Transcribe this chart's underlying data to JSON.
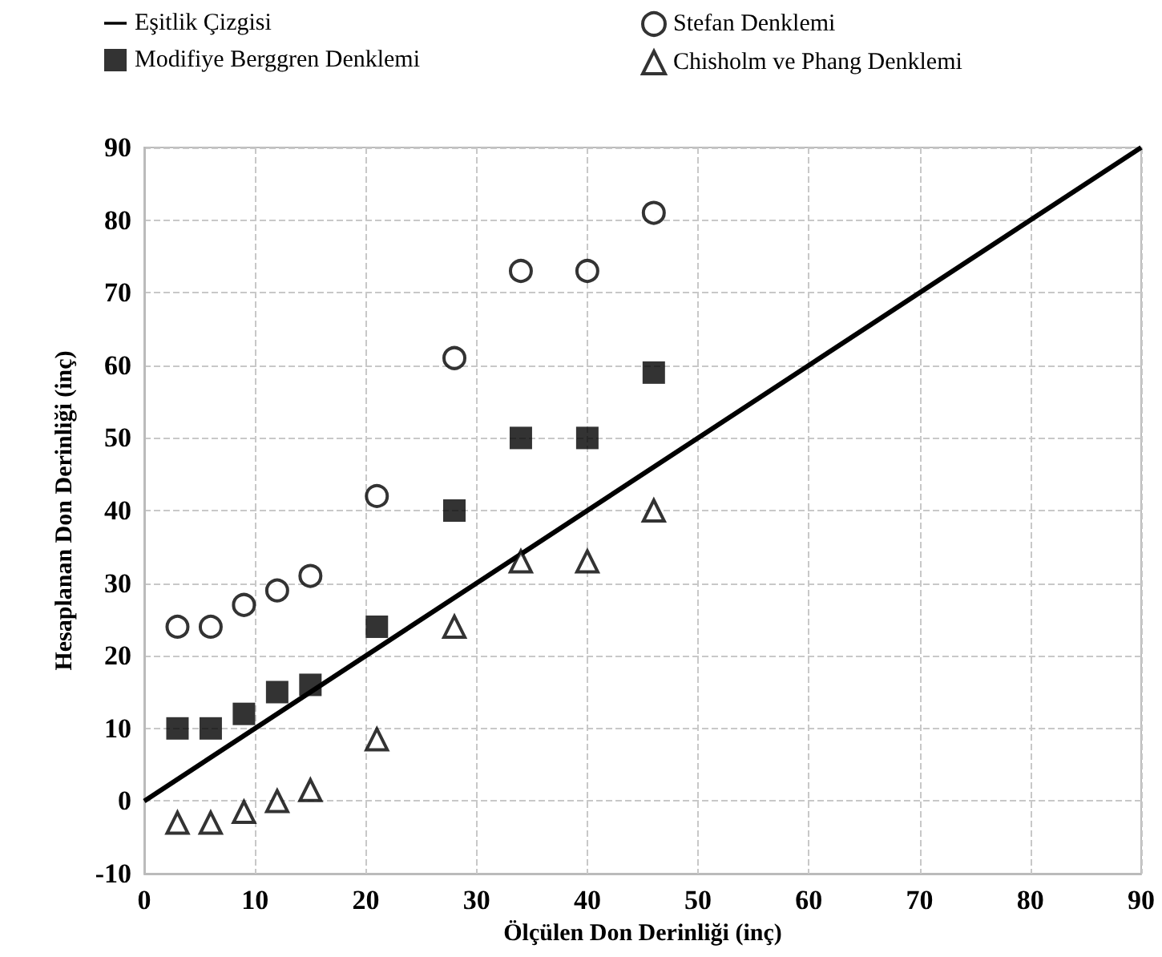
{
  "chart_data": {
    "type": "scatter",
    "xlabel": "Ölçülen Don Derinliği (inç)",
    "ylabel": "Hesaplanan Don Derinliği (inç)",
    "x": [
      3,
      6,
      9,
      12,
      15,
      21,
      28,
      34,
      40,
      46
    ],
    "series": [
      {
        "name": "Eşitlik Çizgisi",
        "type": "line",
        "color": "#000000",
        "x": [
          0,
          90
        ],
        "values": [
          0,
          90
        ],
        "marker": "none",
        "line_style": "solid"
      },
      {
        "name": "Modifiye Berggren Denklemi",
        "color": "#000000",
        "marker": "square",
        "values": [
          10,
          10,
          12,
          15,
          16,
          24,
          40,
          50,
          50,
          59
        ]
      },
      {
        "name": "Stefan Denklemi",
        "color": "#000000",
        "marker": "circle",
        "values": [
          24,
          24,
          27,
          29,
          31,
          42,
          61,
          73,
          73,
          81
        ]
      },
      {
        "name": "Chisholm ve Phang Denklemi",
        "color": "#000000",
        "marker": "triangle",
        "values": [
          -3,
          -3,
          -1.5,
          0,
          1.5,
          8.5,
          24,
          33,
          33,
          40
        ]
      }
    ],
    "xlim": [
      0,
      90
    ],
    "xticks": [
      0,
      10,
      20,
      30,
      40,
      50,
      60,
      70,
      80,
      90
    ],
    "ylim": [
      -10,
      90
    ],
    "yticks": [
      -10,
      0,
      10,
      20,
      30,
      40,
      50,
      60,
      70,
      80,
      90
    ],
    "grid": true,
    "legend": "top"
  }
}
